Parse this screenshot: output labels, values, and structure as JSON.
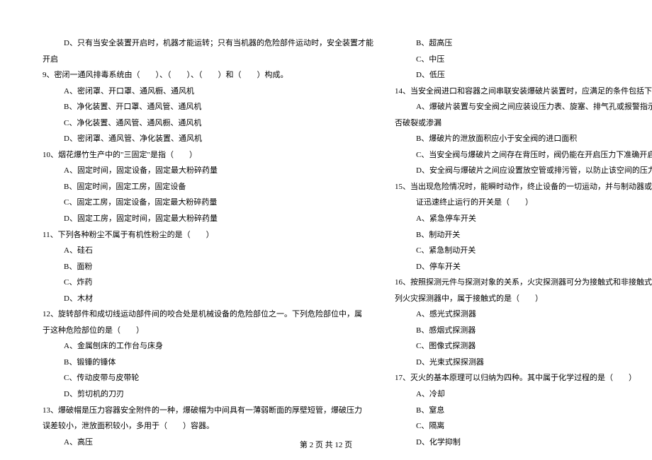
{
  "leftColumn": {
    "q8_d": "D、只有当安全装置开启时，机器才能运转；只有当机器的危险部件运动时，安全装置才能",
    "q8_d2": "开启",
    "q9": "9、密闭一通风排毒系统由（　　）、（　　）、（　　）和（　　）构成。",
    "q9_a": "A、密闭罩、开口罩、通风橱、通风机",
    "q9_b": "B、净化装置、开口罩、通风管、通风机",
    "q9_c": "C、净化装置、通风管、通风橱、通风机",
    "q9_d": "D、密闭罩、通风管、净化装置、通风机",
    "q10": "10、烟花爆竹生产中的\"三固定\"是指（　　）",
    "q10_a": "A、固定时间，固定设备，固定最大粉碎药量",
    "q10_b": "B、固定时间，固定工房，固定设备",
    "q10_c": "C、固定工房，固定设备，固定最大粉碎药量",
    "q10_d": "D、固定工房，固定时间，固定最大粉碎药量",
    "q11": "11、下列各种粉尘不属于有机性粉尘的是（　　）",
    "q11_a": "A、硅石",
    "q11_b": "B、面粉",
    "q11_c": "C、炸药",
    "q11_d": "D、木材",
    "q12": "12、旋转部件和成切线运动部件间的咬合处是机械设备的危险部位之一。下列危险部位中，属",
    "q12_2": "于这种危险部位的是（　　）",
    "q12_a": "A、金属刨床的工作台与床身",
    "q12_b": "B、锻锤的锤体",
    "q12_c": "C、传动皮带与皮带轮",
    "q12_d": "D、剪切机的刀刃",
    "q13": "13、爆破帽是压力容器安全附件的一种，爆破帽为中间具有一薄弱断面的厚壁短管，爆破压力",
    "q13_2": "误差较小，泄放面积较小，多用于（　　）容器。",
    "q13_a": "A、高压"
  },
  "rightColumn": {
    "q13_b": "B、超高压",
    "q13_c": "C、中压",
    "q13_d": "D、低压",
    "q14": "14、当安全阀进口和容器之间串联安装爆破片装置时，应满足的条件包括下列中的（　　）",
    "q14_a": "A、爆破片装置与安全阀之间应装设压力表、旋塞、排气孔或报警指示器，以检查爆破片是",
    "q14_a2": "否破裂或渗漏",
    "q14_b": "B、爆破片的泄放面积应小于安全阀的进口面积",
    "q14_c": "C、当安全阀与爆破片之间存在背压时，阀仍能在开启压力下准确开启",
    "q14_d": "D、安全阀与爆破片之间应设置放空管或排污管，以防止该空间的压力累积",
    "q15": "15、当出现危险情况时，能瞬时动作，终止设备的一切运动，并与制动器或离合器连锁，以保",
    "q15_2": "证迅速终止运行的开关是（　　）",
    "q15_a": "A、紧急停车开关",
    "q15_b": "B、制动开关",
    "q15_c": "C、紧急制动开关",
    "q15_d": "D、停车开关",
    "q16": "16、按照探测元件与探测对象的关系，火灾探测器可分为接触式和非接触式两种基本类型。下",
    "q16_2": "列火灾探测器中，属于接触式的是（　　）",
    "q16_a": "A、感光式探测器",
    "q16_b": "B、感烟式探测器",
    "q16_c": "C、图像式探测器",
    "q16_d": "D、光束式探探测器",
    "q17": "17、灭火的基本原理可以归纳为四种。其中属于化学过程的是（　　）",
    "q17_a": "A、冷却",
    "q17_b": "B、窒息",
    "q17_c": "C、隔离",
    "q17_d": "D、化学抑制"
  },
  "footer": "第 2 页 共 12 页"
}
